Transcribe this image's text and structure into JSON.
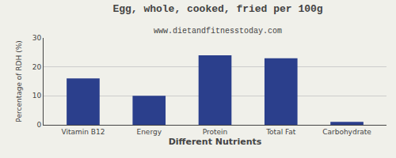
{
  "chart_data": {
    "type": "bar",
    "title": "Egg, whole, cooked, fried per 100g",
    "subtitle": "www.dietandfitnesstoday.com",
    "xlabel": "Different Nutrients",
    "ylabel": "Percentage of RDH (%)",
    "categories": [
      "Vitamin B12",
      "Energy",
      "Protein",
      "Total Fat",
      "Carbohydrate"
    ],
    "values": [
      16,
      10,
      24,
      23,
      1
    ],
    "color": "#2b3f8c",
    "ylim": [
      0,
      30
    ],
    "yticks": [
      0,
      10,
      20,
      30
    ],
    "grid": true
  }
}
